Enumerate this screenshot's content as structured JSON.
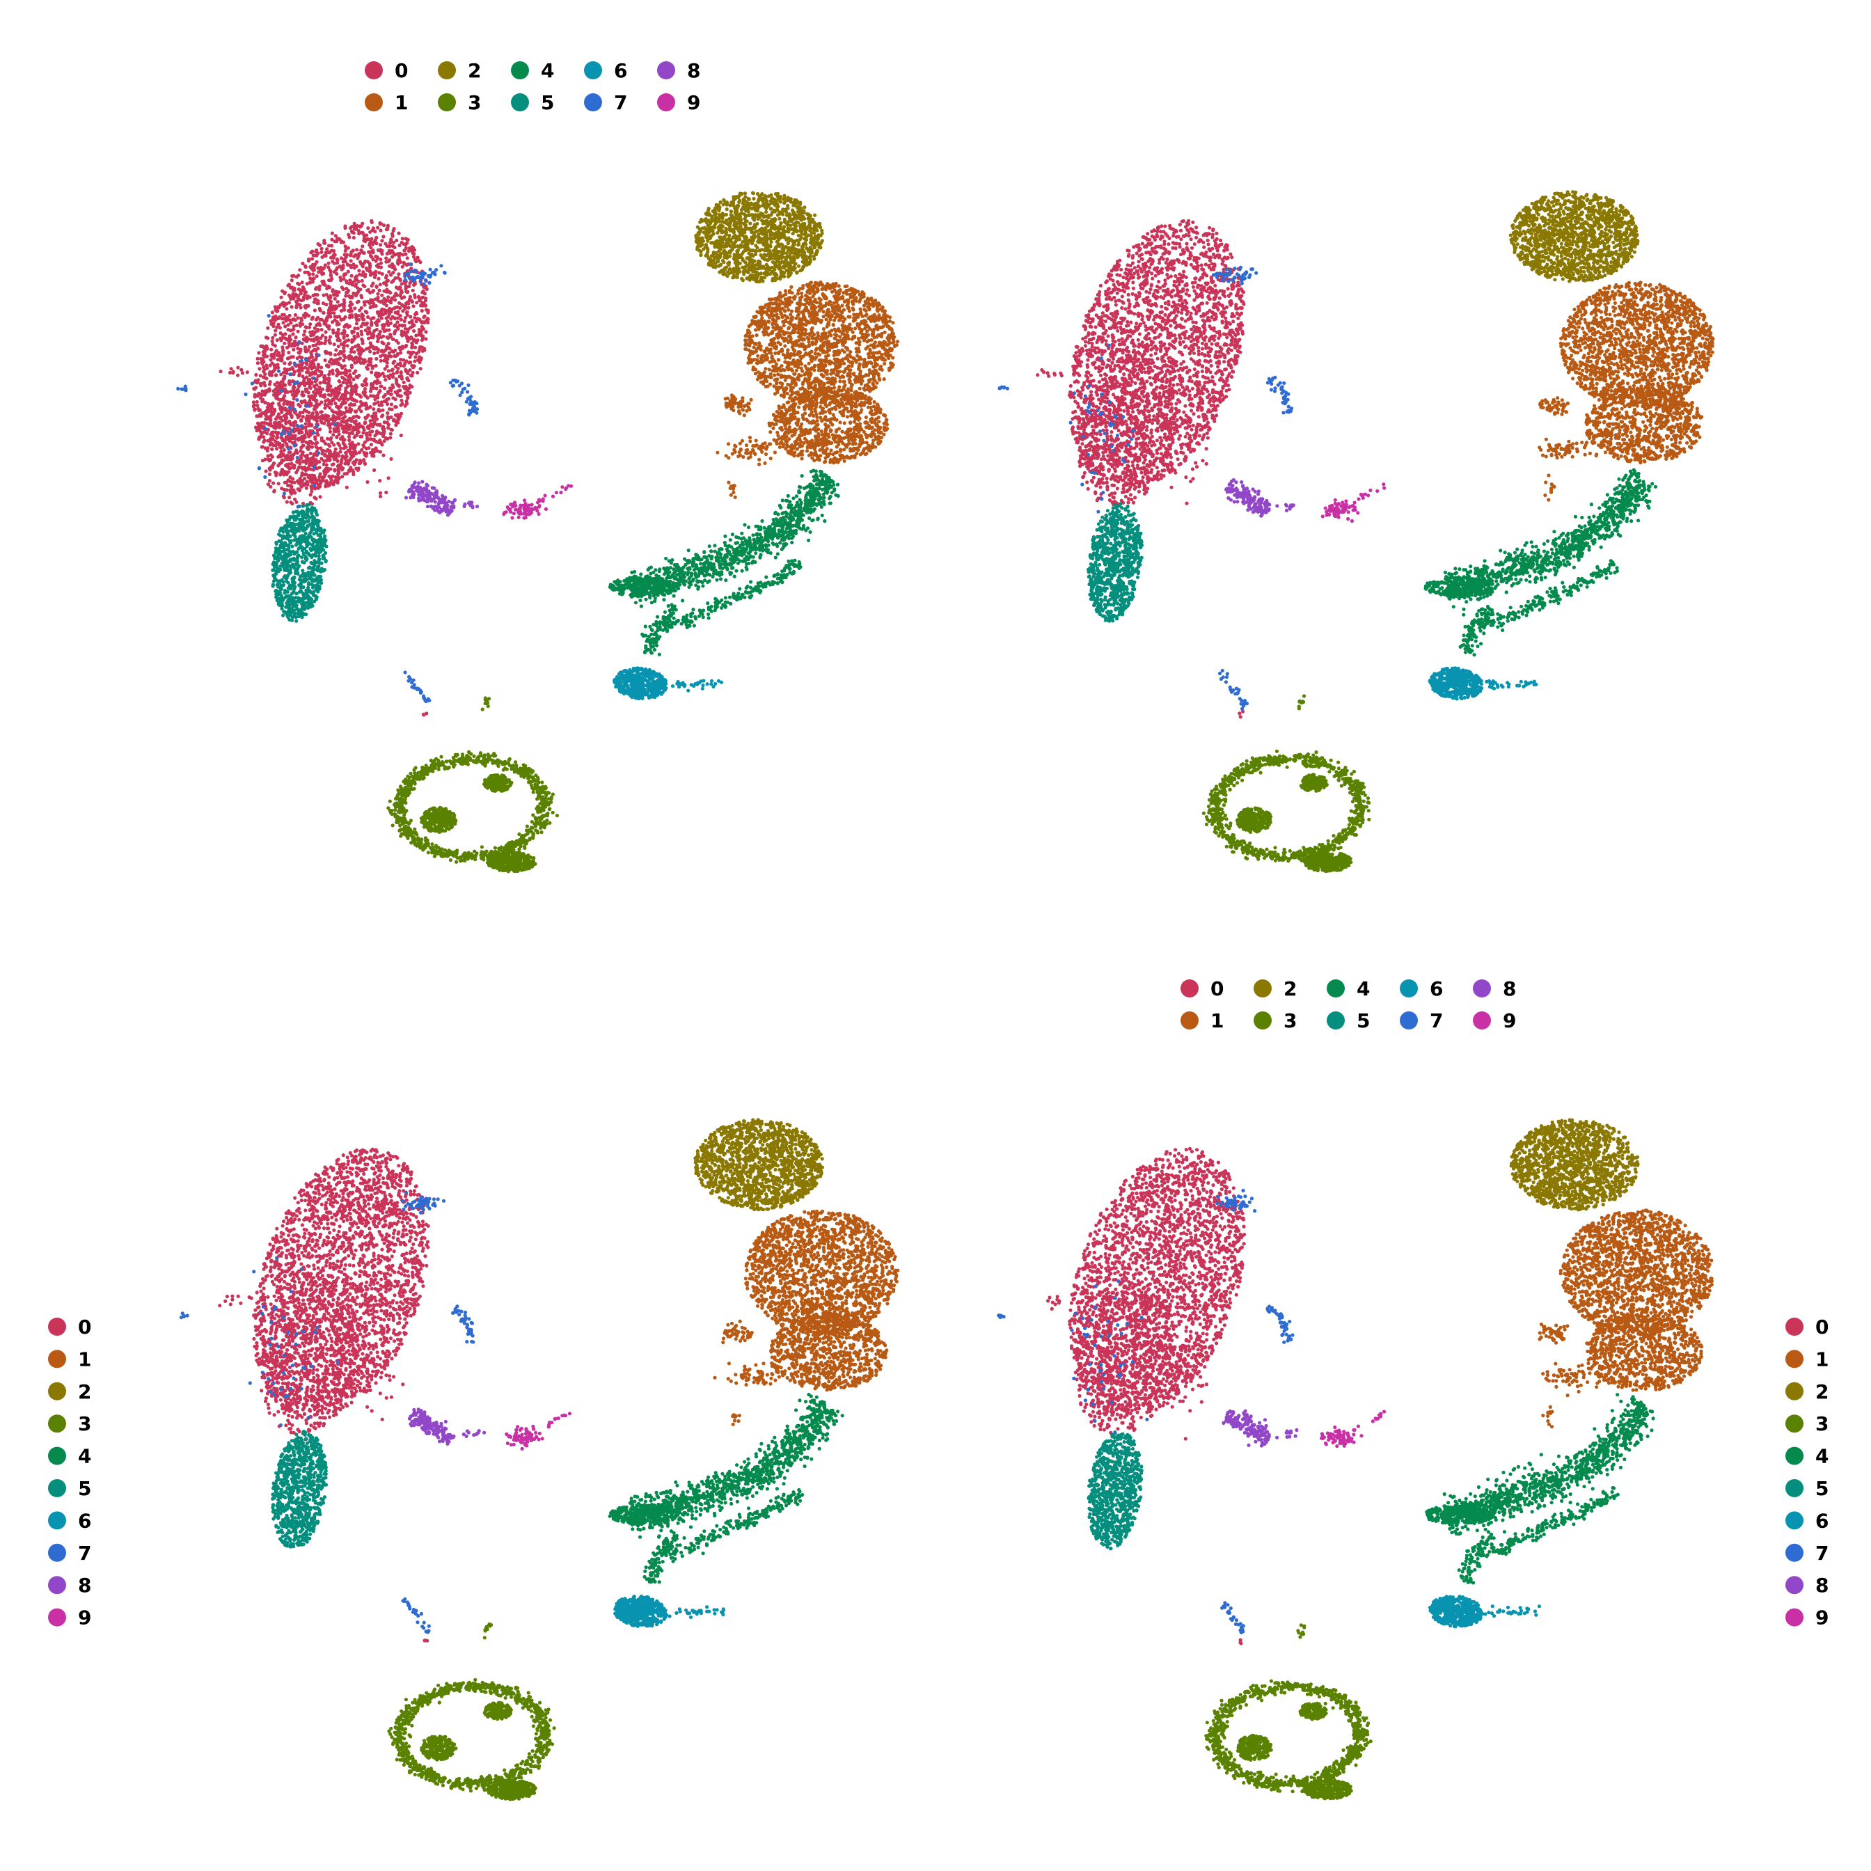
{
  "clusters": [
    {
      "id": "0",
      "label": "0",
      "color": "#C93458"
    },
    {
      "id": "1",
      "label": "1",
      "color": "#B85A14"
    },
    {
      "id": "2",
      "label": "2",
      "color": "#8A7800"
    },
    {
      "id": "3",
      "label": "3",
      "color": "#5A8200"
    },
    {
      "id": "4",
      "label": "4",
      "color": "#058A4E"
    },
    {
      "id": "5",
      "label": "5",
      "color": "#048E7E"
    },
    {
      "id": "6",
      "label": "6",
      "color": "#0893B0"
    },
    {
      "id": "7",
      "label": "7",
      "color": "#2F6CD2"
    },
    {
      "id": "8",
      "label": "8",
      "color": "#9147C8"
    },
    {
      "id": "9",
      "label": "9",
      "color": "#C930A5"
    }
  ],
  "chart_data": [
    {
      "type": "scatter",
      "panel": "top-left",
      "legend_position": "top",
      "legend_layout": "2 rows x 5 columns",
      "axes": "hidden",
      "grid": false,
      "series_ref": "clusters"
    },
    {
      "type": "scatter",
      "panel": "top-right",
      "legend_position": "none",
      "axes": "hidden",
      "grid": false,
      "series_ref": "clusters"
    },
    {
      "type": "scatter",
      "panel": "bottom-left",
      "legend_position": "left",
      "legend_layout": "single column",
      "axes": "hidden",
      "grid": false,
      "series_ref": "clusters"
    },
    {
      "type": "scatter",
      "panel": "bottom-right",
      "legend_position": "top",
      "legend_layout": "2 rows x 5 columns",
      "secondary_legend_position": "right",
      "axes": "hidden",
      "grid": false,
      "series_ref": "clusters"
    }
  ]
}
